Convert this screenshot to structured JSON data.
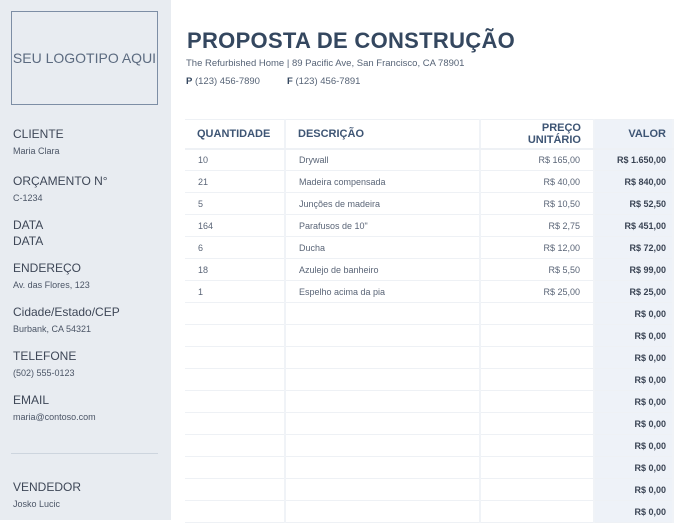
{
  "sidebar": {
    "logo": "SEU LOGOTIPO AQUI",
    "client_label": "CLIENTE",
    "client": "Maria Clara",
    "quote_label": "ORÇAMENTO N°",
    "quote": "C-1234",
    "date_label": "DATA",
    "date": "DATA",
    "address_label": "ENDEREÇO",
    "address": "Av. das Flores, 123",
    "city_label": "Cidade/Estado/CEP",
    "city": "Burbank, CA 54321",
    "phone_label": "TELEFONE",
    "phone": "(502) 555-0123",
    "email_label": "EMAIL",
    "email": "maria@contoso.com",
    "seller_label": "VENDEDOR",
    "seller": "Josko Lucic"
  },
  "header": {
    "title": "PROPOSTA DE CONSTRUÇÃO",
    "address": "The Refurbished Home | 89 Pacific Ave, San Francisco, CA 78901",
    "phone_prefix": "P",
    "phone": "(123) 456-7890",
    "fax_prefix": "F",
    "fax": "(123) 456-7891"
  },
  "table": {
    "columns": [
      "QUANTIDADE",
      "DESCRIÇÃO",
      "PREÇO UNITÁRIO",
      "VALOR"
    ],
    "rows": [
      [
        "10",
        "Drywall",
        "R$ 165,00",
        "R$ 1.650,00"
      ],
      [
        "21",
        "Madeira compensada",
        "R$ 40,00",
        "R$ 840,00"
      ],
      [
        "5",
        "Junções de madeira",
        "R$ 10,50",
        "R$ 52,50"
      ],
      [
        "164",
        "Parafusos de 10\"",
        "R$ 2,75",
        "R$ 451,00"
      ],
      [
        "6",
        "Ducha",
        "R$ 12,00",
        "R$ 72,00"
      ],
      [
        "18",
        "Azulejo de banheiro",
        "R$ 5,50",
        "R$ 99,00"
      ],
      [
        "1",
        "Espelho acima da pia",
        "R$ 25,00",
        "R$ 25,00"
      ],
      [
        "",
        "",
        "",
        "R$ 0,00"
      ],
      [
        "",
        "",
        "",
        "R$ 0,00"
      ],
      [
        "",
        "",
        "",
        "R$ 0,00"
      ],
      [
        "",
        "",
        "",
        "R$ 0,00"
      ],
      [
        "",
        "",
        "",
        "R$ 0,00"
      ],
      [
        "",
        "",
        "",
        "R$ 0,00"
      ],
      [
        "",
        "",
        "",
        "R$ 0,00"
      ],
      [
        "",
        "",
        "",
        "R$ 0,00"
      ],
      [
        "",
        "",
        "",
        "R$ 0,00"
      ],
      [
        "",
        "",
        "",
        "R$ 0,00"
      ]
    ]
  }
}
